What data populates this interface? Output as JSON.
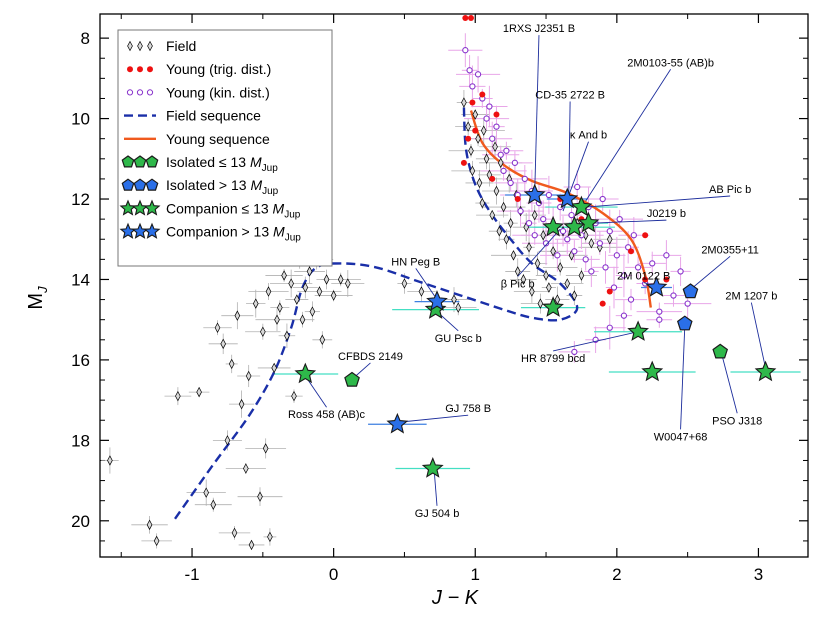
{
  "chart_data": {
    "type": "scatter",
    "xlabel": "J − K",
    "ylabel": "M",
    "ylabel_sub": "J",
    "xlim": [
      -1.65,
      3.35
    ],
    "ylim": [
      20.9,
      7.4
    ],
    "y_inverted": true,
    "x_ticks": [
      -1,
      0,
      1,
      2,
      3
    ],
    "y_ticks": [
      8,
      10,
      12,
      14,
      16,
      18,
      20
    ],
    "legend": [
      {
        "key": "field",
        "label": "Field",
        "suffix": ""
      },
      {
        "key": "young_trig",
        "label": "Young (trig. dist.)",
        "suffix": ""
      },
      {
        "key": "young_kin",
        "label": "Young (kin. dist.)",
        "suffix": ""
      },
      {
        "key": "field_seq",
        "label": "Field sequence",
        "suffix": ""
      },
      {
        "key": "young_seq",
        "label": "Young sequence",
        "suffix": ""
      },
      {
        "key": "iso_low",
        "label": "Isolated ≤ 13 ",
        "suffix": "M",
        "sub": "Jup"
      },
      {
        "key": "iso_high",
        "label": "Isolated > 13 ",
        "suffix": "M",
        "sub": "Jup"
      },
      {
        "key": "comp_low",
        "label": "Companion ≤ 13 ",
        "suffix": "M",
        "sub": "Jup"
      },
      {
        "key": "comp_high",
        "label": "Companion > 13 ",
        "suffix": "M",
        "sub": "Jup"
      }
    ],
    "colors": {
      "field": "#222222",
      "young_trig": "#ee1111",
      "young_kin": "#8833cc",
      "young_err": "#e8a6e8",
      "field_seq": "#1a2fa8",
      "young_seq": "#f05a1e",
      "green": "#2eb84a",
      "green_err": "#44dfc3",
      "blue": "#2a6fe8",
      "blue_err": "#3d7fe0"
    },
    "field_sequence": [
      [
        -1.12,
        19.95
      ],
      [
        -0.85,
        18.6
      ],
      [
        -0.6,
        17.4
      ],
      [
        -0.42,
        16.3
      ],
      [
        -0.3,
        15.2
      ],
      [
        -0.22,
        14.2
      ],
      [
        -0.12,
        13.7
      ],
      [
        0.05,
        13.6
      ],
      [
        0.3,
        13.7
      ],
      [
        0.6,
        14.05
      ],
      [
        0.9,
        14.4
      ],
      [
        1.2,
        14.75
      ],
      [
        1.4,
        14.95
      ],
      [
        1.6,
        15.0
      ],
      [
        1.72,
        14.7
      ],
      [
        1.6,
        14.1
      ],
      [
        1.4,
        13.6
      ],
      [
        1.25,
        13.0
      ],
      [
        1.12,
        12.4
      ],
      [
        1.02,
        11.8
      ],
      [
        0.96,
        11.2
      ],
      [
        0.93,
        10.6
      ],
      [
        0.92,
        9.7
      ]
    ],
    "young_sequence": [
      [
        0.97,
        9.8
      ],
      [
        1.05,
        10.6
      ],
      [
        1.2,
        11.15
      ],
      [
        1.4,
        11.55
      ],
      [
        1.65,
        11.85
      ],
      [
        1.9,
        12.35
      ],
      [
        2.1,
        13.0
      ],
      [
        2.2,
        13.9
      ],
      [
        2.24,
        14.7
      ]
    ],
    "field_points": [
      [
        -1.58,
        18.5
      ],
      [
        -1.3,
        20.1
      ],
      [
        -1.25,
        20.5
      ],
      [
        -1.1,
        16.9
      ],
      [
        -0.95,
        16.8
      ],
      [
        -0.9,
        19.3
      ],
      [
        -0.85,
        19.6
      ],
      [
        -0.82,
        15.2
      ],
      [
        -0.78,
        15.6
      ],
      [
        -0.75,
        18.0
      ],
      [
        -0.72,
        16.1
      ],
      [
        -0.7,
        20.3
      ],
      [
        -0.68,
        14.9
      ],
      [
        -0.65,
        17.1
      ],
      [
        -0.62,
        18.7
      ],
      [
        -0.6,
        16.4
      ],
      [
        -0.58,
        20.6
      ],
      [
        -0.55,
        14.6
      ],
      [
        -0.52,
        19.4
      ],
      [
        -0.5,
        15.3
      ],
      [
        -0.48,
        18.2
      ],
      [
        -0.46,
        14.3
      ],
      [
        -0.45,
        20.4
      ],
      [
        -0.42,
        16.2
      ],
      [
        -0.4,
        15.0
      ],
      [
        -0.38,
        14.7
      ],
      [
        -0.35,
        13.9
      ],
      [
        -0.33,
        15.4
      ],
      [
        -0.3,
        14.1
      ],
      [
        -0.28,
        16.9
      ],
      [
        -0.26,
        14.5
      ],
      [
        -0.24,
        13.5
      ],
      [
        -0.22,
        15.0
      ],
      [
        -0.2,
        14.2
      ],
      [
        -0.17,
        13.8
      ],
      [
        -0.15,
        14.8
      ],
      [
        -0.12,
        13.5
      ],
      [
        -0.1,
        14.3
      ],
      [
        -0.08,
        15.5
      ],
      [
        -0.05,
        14.0
      ],
      [
        0.0,
        14.4
      ],
      [
        0.05,
        14.0
      ],
      [
        0.1,
        14.1
      ],
      [
        0.5,
        14.1
      ],
      [
        0.62,
        14.3
      ],
      [
        0.85,
        14.5
      ],
      [
        0.88,
        14.7
      ],
      [
        0.92,
        9.6
      ],
      [
        0.95,
        10.2
      ],
      [
        0.97,
        10.8
      ],
      [
        0.98,
        11.3
      ],
      [
        1.0,
        9.9
      ],
      [
        1.02,
        10.5
      ],
      [
        1.03,
        11.6
      ],
      [
        1.05,
        12.1
      ],
      [
        1.06,
        10.3
      ],
      [
        1.08,
        11.0
      ],
      [
        1.1,
        11.4
      ],
      [
        1.12,
        12.4
      ],
      [
        1.14,
        10.7
      ],
      [
        1.15,
        11.8
      ],
      [
        1.17,
        12.8
      ],
      [
        1.18,
        11.1
      ],
      [
        1.2,
        12.2
      ],
      [
        1.22,
        13.0
      ],
      [
        1.24,
        11.5
      ],
      [
        1.25,
        12.6
      ],
      [
        1.27,
        13.4
      ],
      [
        1.29,
        11.9
      ],
      [
        1.3,
        13.8
      ],
      [
        1.32,
        12.3
      ],
      [
        1.34,
        14.0
      ],
      [
        1.36,
        12.7
      ],
      [
        1.38,
        13.2
      ],
      [
        1.4,
        14.3
      ],
      [
        1.42,
        12.4
      ],
      [
        1.44,
        13.6
      ],
      [
        1.46,
        14.6
      ],
      [
        1.48,
        12.9
      ],
      [
        1.5,
        13.9
      ],
      [
        1.52,
        14.2
      ],
      [
        1.55,
        13.3
      ],
      [
        1.58,
        14.5
      ],
      [
        1.6,
        13.7
      ],
      [
        1.62,
        12.8
      ],
      [
        1.65,
        14.1
      ],
      [
        1.68,
        13.4
      ],
      [
        1.7,
        14.4
      ],
      [
        1.72,
        12.6
      ],
      [
        1.75,
        13.9
      ],
      [
        1.78,
        12.9
      ],
      [
        1.82,
        13.1
      ],
      [
        1.88,
        13.2
      ],
      [
        1.95,
        13.0
      ]
    ],
    "young_trig_points": [
      [
        0.93,
        7.5
      ],
      [
        0.97,
        7.5
      ],
      [
        0.98,
        9.6
      ],
      [
        1.0,
        10.3
      ],
      [
        1.05,
        9.4
      ],
      [
        1.15,
        9.9
      ],
      [
        0.95,
        10.5
      ],
      [
        0.92,
        11.1
      ],
      [
        1.12,
        11.5
      ],
      [
        1.3,
        12.0
      ],
      [
        1.6,
        12.0
      ],
      [
        1.75,
        12.5
      ],
      [
        2.1,
        13.3
      ],
      [
        2.2,
        12.9
      ],
      [
        2.2,
        14.0
      ],
      [
        2.35,
        14.0
      ],
      [
        1.95,
        14.3
      ],
      [
        1.9,
        14.6
      ]
    ],
    "young_kin_points": [
      [
        0.93,
        8.3
      ],
      [
        0.96,
        8.8
      ],
      [
        0.98,
        9.2
      ],
      [
        1.02,
        8.9
      ],
      [
        1.05,
        9.5
      ],
      [
        1.08,
        10.0
      ],
      [
        1.1,
        9.7
      ],
      [
        1.12,
        10.5
      ],
      [
        1.15,
        10.2
      ],
      [
        1.18,
        10.9
      ],
      [
        1.2,
        11.3
      ],
      [
        1.22,
        10.8
      ],
      [
        1.25,
        11.6
      ],
      [
        1.28,
        11.1
      ],
      [
        1.3,
        11.9
      ],
      [
        1.32,
        12.3
      ],
      [
        1.35,
        11.5
      ],
      [
        1.38,
        12.6
      ],
      [
        1.4,
        11.8
      ],
      [
        1.42,
        12.9
      ],
      [
        1.45,
        12.1
      ],
      [
        1.48,
        12.5
      ],
      [
        1.5,
        13.1
      ],
      [
        1.52,
        11.9
      ],
      [
        1.55,
        12.7
      ],
      [
        1.58,
        13.4
      ],
      [
        1.6,
        12.2
      ],
      [
        1.62,
        12.8
      ],
      [
        1.65,
        13.0
      ],
      [
        1.68,
        12.4
      ],
      [
        1.7,
        13.3
      ],
      [
        1.72,
        11.7
      ],
      [
        1.75,
        12.9
      ],
      [
        1.78,
        13.5
      ],
      [
        1.8,
        12.2
      ],
      [
        1.82,
        13.8
      ],
      [
        1.85,
        12.6
      ],
      [
        1.88,
        13.1
      ],
      [
        1.9,
        12.0
      ],
      [
        1.92,
        13.7
      ],
      [
        1.95,
        12.8
      ],
      [
        1.98,
        14.2
      ],
      [
        2.0,
        13.4
      ],
      [
        2.02,
        12.5
      ],
      [
        2.05,
        13.9
      ],
      [
        2.08,
        13.2
      ],
      [
        2.1,
        14.5
      ],
      [
        2.12,
        12.9
      ],
      [
        2.15,
        13.7
      ],
      [
        2.2,
        14.1
      ],
      [
        2.25,
        13.6
      ],
      [
        2.3,
        14.8
      ],
      [
        2.35,
        13.4
      ],
      [
        2.4,
        14.4
      ],
      [
        2.45,
        13.8
      ],
      [
        2.5,
        14.6
      ],
      [
        2.3,
        15.0
      ],
      [
        1.85,
        15.5
      ],
      [
        1.95,
        15.2
      ],
      [
        2.05,
        14.9
      ],
      [
        1.7,
        15.8
      ]
    ],
    "iso_low": [
      [
        0.13,
        16.5
      ],
      [
        2.73,
        15.8
      ]
    ],
    "iso_high": [
      [
        2.52,
        14.3
      ],
      [
        2.48,
        15.1
      ]
    ],
    "comp_low": [
      [
        -0.2,
        16.35
      ],
      [
        0.72,
        14.75
      ],
      [
        0.7,
        18.7
      ],
      [
        1.55,
        14.7
      ],
      [
        1.55,
        12.7
      ],
      [
        1.7,
        12.7
      ],
      [
        1.75,
        12.2
      ],
      [
        1.8,
        12.6
      ],
      [
        2.15,
        15.3
      ],
      [
        2.25,
        16.3
      ],
      [
        3.05,
        16.3
      ]
    ],
    "comp_high": [
      [
        0.45,
        17.6
      ],
      [
        0.73,
        14.55
      ],
      [
        1.42,
        11.9
      ],
      [
        1.65,
        12.0
      ],
      [
        2.28,
        14.2
      ]
    ],
    "annotations": [
      {
        "text": "1RXS J2351 B",
        "x": 1.45,
        "y": 7.85,
        "px": 1.42,
        "py": 11.85
      },
      {
        "text": "2M0103-55 (AB)b",
        "x": 2.38,
        "y": 8.7,
        "px": 1.78,
        "py": 12.05
      },
      {
        "text": "CD-35 2722 B",
        "x": 1.67,
        "y": 9.5,
        "px": 1.66,
        "py": 11.95
      },
      {
        "text": "κ And b",
        "x": 1.8,
        "y": 10.5,
        "px": 1.62,
        "py": 12.3
      },
      {
        "text": "AB Pic b",
        "x": 2.8,
        "y": 11.85,
        "px": 1.78,
        "py": 12.2
      },
      {
        "text": "J0219 b",
        "x": 2.35,
        "y": 12.45,
        "px": 1.82,
        "py": 12.6
      },
      {
        "text": "2M0355+11",
        "x": 2.8,
        "y": 13.35,
        "px": 2.52,
        "py": 14.25
      },
      {
        "text": "HN Peg B",
        "x": 0.58,
        "y": 13.65,
        "px": 0.74,
        "py": 14.55
      },
      {
        "text": "2M 0122 B",
        "x": 2.19,
        "y": 14.0,
        "px": 2.28,
        "py": 14.2
      },
      {
        "text": "β Pic b",
        "x": 1.3,
        "y": 14.2,
        "px": 1.6,
        "py": 12.75
      },
      {
        "text": "2M 1207 b",
        "x": 2.95,
        "y": 14.5,
        "px": 3.05,
        "py": 16.2
      },
      {
        "text": "GU Psc b",
        "x": 0.88,
        "y": 15.55,
        "px": 0.73,
        "py": 14.8
      },
      {
        "text": "HR 8799 bcd",
        "x": 1.55,
        "y": 16.05,
        "px": 2.15,
        "py": 15.3
      },
      {
        "text": "CFBDS 2149",
        "x": 0.26,
        "y": 16.0,
        "px": 0.14,
        "py": 16.45
      },
      {
        "text": "Ross 458 (AB)c",
        "x": -0.05,
        "y": 17.45,
        "px": -0.2,
        "py": 16.4
      },
      {
        "text": "GJ 758 B",
        "x": 0.95,
        "y": 17.3,
        "px": 0.46,
        "py": 17.55
      },
      {
        "text": "PSO J318",
        "x": 2.85,
        "y": 17.6,
        "px": 2.74,
        "py": 15.85
      },
      {
        "text": "W0047+68",
        "x": 2.45,
        "y": 18.0,
        "px": 2.48,
        "py": 15.15
      },
      {
        "text": "GJ 504 b",
        "x": 0.73,
        "y": 19.9,
        "px": 0.71,
        "py": 18.75
      }
    ]
  }
}
